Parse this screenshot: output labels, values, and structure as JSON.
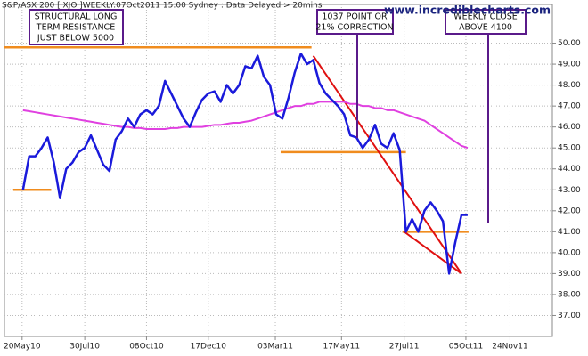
{
  "chart_data": {
    "type": "line",
    "title": "S&P/ASX 200 [ XJO ]WEEKLY:07Oct2011 15:00 Sydney : Data Delayed > 20mins",
    "watermark": "www.incrediblecharts.com",
    "x_start": "2010-05-21",
    "x": [
      "2010-05-21",
      "2010-05-28",
      "2010-06-04",
      "2010-06-11",
      "2010-06-18",
      "2010-06-25",
      "2010-07-02",
      "2010-07-09",
      "2010-07-16",
      "2010-07-23",
      "2010-07-30",
      "2010-08-06",
      "2010-08-13",
      "2010-08-20",
      "2010-08-27",
      "2010-09-03",
      "2010-09-10",
      "2010-09-17",
      "2010-09-24",
      "2010-10-01",
      "2010-10-08",
      "2010-10-15",
      "2010-10-22",
      "2010-10-29",
      "2010-11-05",
      "2010-11-12",
      "2010-11-19",
      "2010-11-26",
      "2010-12-03",
      "2010-12-10",
      "2010-12-17",
      "2010-12-24",
      "2010-12-31",
      "2011-01-07",
      "2011-01-14",
      "2011-01-21",
      "2011-01-28",
      "2011-02-04",
      "2011-02-11",
      "2011-02-18",
      "2011-02-25",
      "2011-03-04",
      "2011-03-11",
      "2011-03-18",
      "2011-03-25",
      "2011-04-01",
      "2011-04-08",
      "2011-04-15",
      "2011-04-22",
      "2011-04-29",
      "2011-05-06",
      "2011-05-13",
      "2011-05-20",
      "2011-05-27",
      "2011-06-03",
      "2011-06-10",
      "2011-06-17",
      "2011-06-24",
      "2011-07-01",
      "2011-07-08",
      "2011-07-15",
      "2011-07-22",
      "2011-07-29",
      "2011-08-05",
      "2011-08-12",
      "2011-08-19",
      "2011-08-26",
      "2011-09-02",
      "2011-09-09",
      "2011-09-16",
      "2011-09-23",
      "2011-09-30",
      "2011-10-07"
    ],
    "series": [
      {
        "color": "#1a1adb",
        "values": [
          43.0,
          44.6,
          44.6,
          45.0,
          45.5,
          44.3,
          42.6,
          44.0,
          44.3,
          44.8,
          45.0,
          45.6,
          44.9,
          44.2,
          43.9,
          45.4,
          45.8,
          46.4,
          46.0,
          46.6,
          46.8,
          46.6,
          47.0,
          48.2,
          47.6,
          47.0,
          46.4,
          46.0,
          46.7,
          47.3,
          47.6,
          47.7,
          47.2,
          48.0,
          47.6,
          48.0,
          48.9,
          48.8,
          49.4,
          48.4,
          48.0,
          46.6,
          46.4,
          47.4,
          48.6,
          49.5,
          49.0,
          49.2,
          48.1,
          47.6,
          47.3,
          47.0,
          46.6,
          45.6,
          45.5,
          45.0,
          45.4,
          46.1,
          45.2,
          45.0,
          45.7,
          44.9,
          41.0,
          41.6,
          41.0,
          42.0,
          42.4,
          42.0,
          41.5,
          39.0,
          40.5,
          41.8,
          41.8
        ]
      },
      {
        "color": "#e040e0",
        "values": [
          46.8,
          46.75,
          46.7,
          46.65,
          46.6,
          46.55,
          46.5,
          46.45,
          46.4,
          46.35,
          46.3,
          46.25,
          46.2,
          46.15,
          46.1,
          46.05,
          46.0,
          46.0,
          45.95,
          45.95,
          45.9,
          45.9,
          45.9,
          45.9,
          45.95,
          45.95,
          46.0,
          46.0,
          46.0,
          46.0,
          46.05,
          46.1,
          46.1,
          46.15,
          46.2,
          46.2,
          46.25,
          46.3,
          46.4,
          46.5,
          46.6,
          46.7,
          46.8,
          46.9,
          47.0,
          47.0,
          47.1,
          47.1,
          47.2,
          47.2,
          47.2,
          47.2,
          47.2,
          47.1,
          47.1,
          47.0,
          47.0,
          46.9,
          46.9,
          46.8,
          46.8,
          46.7,
          46.6,
          46.5,
          46.4,
          46.3,
          46.1,
          45.9,
          45.7,
          45.5,
          45.3,
          45.1,
          45.0
        ]
      }
    ],
    "xlim": [
      "2010-04-30",
      "2012-01-11"
    ],
    "xticks": [
      {
        "value": "2010-05-20",
        "label": "20May10"
      },
      {
        "value": "2010-07-30",
        "label": "30Jul10"
      },
      {
        "value": "2010-10-08",
        "label": "08Oct10"
      },
      {
        "value": "2010-12-17",
        "label": "17Dec10"
      },
      {
        "value": "2011-03-03",
        "label": "03Mar11"
      },
      {
        "value": "2011-05-17",
        "label": "17May11"
      },
      {
        "value": "2011-07-27",
        "label": "27Jul11"
      },
      {
        "value": "2011-10-05",
        "label": "05Oct11"
      },
      {
        "value": "2011-11-24",
        "label": "24Nov11"
      }
    ],
    "ylim": [
      36,
      51.85
    ],
    "yticks": [
      {
        "value": 37,
        "label": "37.00"
      },
      {
        "value": 38,
        "label": "38.00"
      },
      {
        "value": 39,
        "label": "39.00"
      },
      {
        "value": 40,
        "label": "40.00"
      },
      {
        "value": 41,
        "label": "41.00"
      },
      {
        "value": 42,
        "label": "42.00"
      },
      {
        "value": 43,
        "label": "43.00"
      },
      {
        "value": 44,
        "label": "44.00"
      },
      {
        "value": 45,
        "label": "45.00"
      },
      {
        "value": 46,
        "label": "46.00"
      },
      {
        "value": 47,
        "label": "47.00"
      },
      {
        "value": 48,
        "label": "48.00"
      },
      {
        "value": 49,
        "label": "49.00"
      },
      {
        "value": 50,
        "label": "50.00"
      }
    ],
    "grid": true,
    "levels": [
      {
        "color": "#f08c1e",
        "value": 49.8,
        "x": [
          "2010-04-30",
          "2011-04-13"
        ]
      },
      {
        "color": "#f08c1e",
        "value": 43.0,
        "x": [
          "2010-05-10",
          "2010-06-22"
        ]
      },
      {
        "color": "#f08c1e",
        "value": 44.8,
        "x": [
          "2011-03-09",
          "2011-07-29"
        ]
      },
      {
        "color": "#f08c1e",
        "value": 41.0,
        "x": [
          "2011-07-25",
          "2011-10-08"
        ]
      }
    ],
    "trendlines": [
      {
        "color": "#e01010",
        "x": [
          "2011-04-15",
          "2011-09-30"
        ],
        "y": [
          49.4,
          39.0
        ]
      },
      {
        "color": "#e01010",
        "x": [
          "2011-07-27",
          "2011-09-30"
        ],
        "y": [
          41.0,
          39.0
        ]
      }
    ],
    "annotations": [
      {
        "lines": [
          "STRUCTURAL LONG",
          "TERM RESISTANCE",
          "JUST BELOW 5000"
        ]
      },
      {
        "lines": [
          "1037 POINT OR",
          "21% CORRECTION"
        ]
      },
      {
        "lines": [
          "WEEKLY CLOSE",
          "ABOVE 4100"
        ]
      }
    ]
  }
}
